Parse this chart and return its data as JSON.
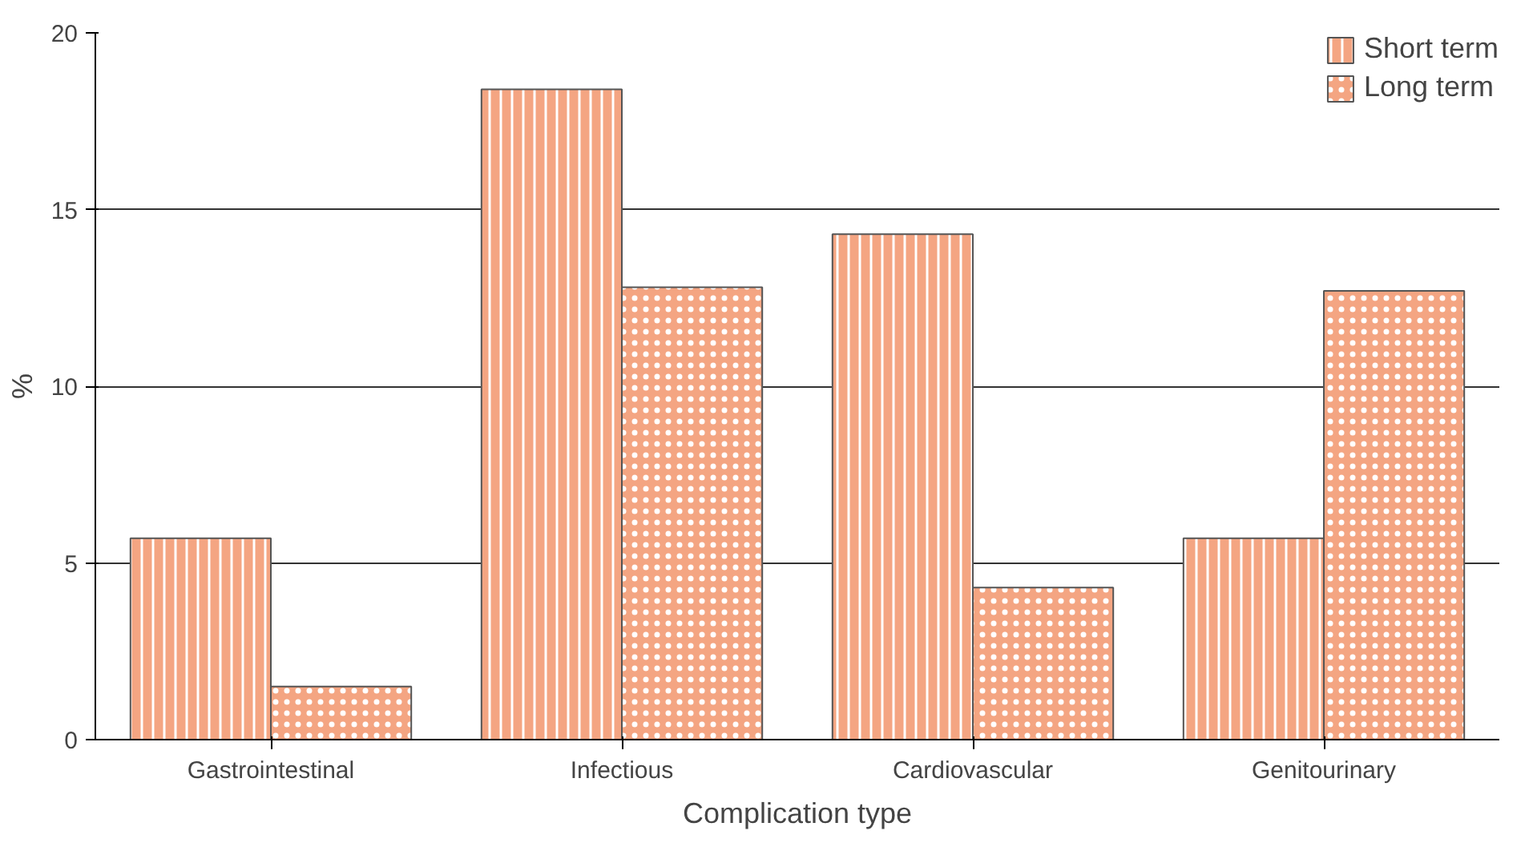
{
  "chart_data": {
    "type": "bar",
    "xlabel": "Complication type",
    "ylabel": "%",
    "categories": [
      "Gastrointestinal",
      "Infectious",
      "Cardiovascular",
      "Genitourinary"
    ],
    "series": [
      {
        "name": "Short term",
        "color": "#f4a582",
        "values": [
          5.7,
          18.4,
          14.3,
          5.7
        ]
      },
      {
        "name": "Long term",
        "color": "#f4a582",
        "values": [
          1.5,
          12.8,
          4.3,
          12.7
        ]
      }
    ],
    "ylim": [
      0,
      20
    ],
    "yticks": [
      0,
      5,
      10,
      15,
      20
    ],
    "grid": "y",
    "legend": "top right"
  }
}
